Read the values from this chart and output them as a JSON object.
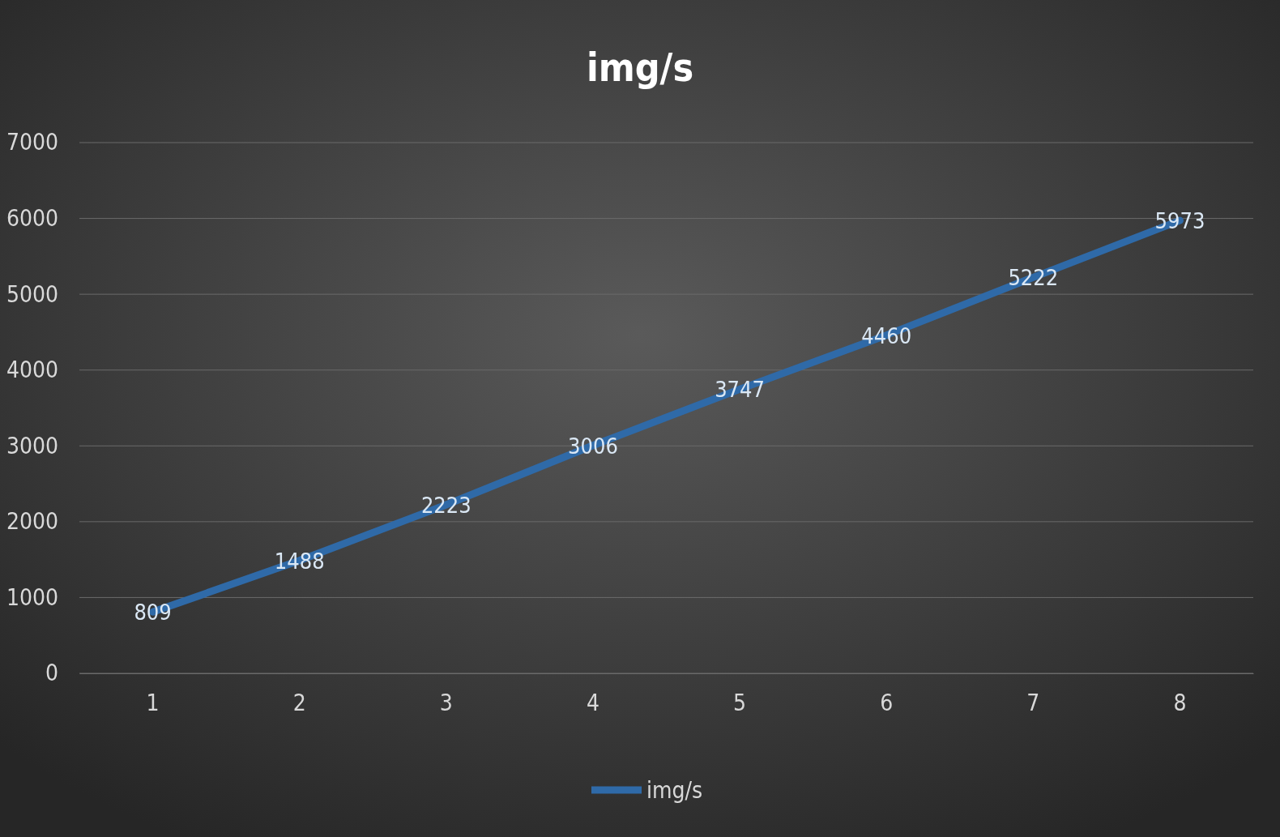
{
  "chart_data": {
    "type": "line",
    "title": "img/s",
    "categories": [
      "1",
      "2",
      "3",
      "4",
      "5",
      "6",
      "7",
      "8"
    ],
    "series": [
      {
        "name": "img/s",
        "color": "#2f6aa8",
        "values": [
          809,
          1488,
          2223,
          3006,
          3747,
          4460,
          5222,
          5973
        ]
      }
    ],
    "ylim": [
      0,
      7000
    ],
    "yticks": [
      0,
      1000,
      2000,
      3000,
      4000,
      5000,
      6000,
      7000
    ],
    "grid": "y",
    "legend": "bottom",
    "data_labels": true,
    "marker": "none",
    "line_style": "solid"
  }
}
